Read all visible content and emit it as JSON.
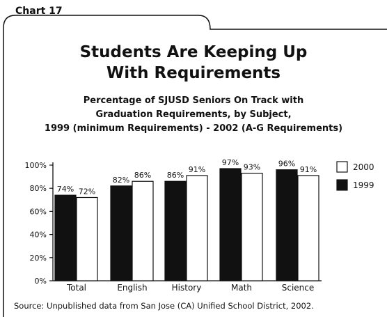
{
  "tab_label": "Chart 17",
  "title_lines": [
    "Students Are Keeping Up",
    "With Requirements"
  ],
  "subtitle_lines": [
    "Percentage of SJUSD Seniors On Track with",
    "Graduation Requirements, by Subject,",
    "1999 (minimum Requirements) - 2002 (A-G Requirements)"
  ],
  "source": "Source: Unpublished data from San Jose (CA) Unified School District, 2002.",
  "colors": {
    "series_1999": "#111111",
    "series_2000": "#ffffff",
    "stroke": "#111111"
  },
  "chart_data": {
    "type": "bar",
    "title": "Students Are Keeping Up With Requirements",
    "subtitle": "Percentage of SJUSD Seniors On Track with Graduation Requirements, by Subject, 1999 (minimum Requirements) - 2002 (A-G Requirements)",
    "categories": [
      "Total",
      "English",
      "History",
      "Math",
      "Science"
    ],
    "series": [
      {
        "name": "1999",
        "values": [
          74,
          82,
          86,
          97,
          96
        ],
        "labels": [
          "74%",
          "82%",
          "86%",
          "97%",
          "96%"
        ],
        "color": "#111111"
      },
      {
        "name": "2000",
        "values": [
          72,
          86,
          91,
          93,
          91
        ],
        "labels": [
          "72%",
          "86%",
          "91%",
          "93%",
          "91%"
        ],
        "color": "#ffffff"
      }
    ],
    "y_ticks": [
      0,
      20,
      40,
      60,
      80,
      100
    ],
    "y_tick_labels": [
      "0%",
      "20%",
      "40%",
      "60%",
      "80%",
      "100%"
    ],
    "ylim": [
      0,
      100
    ],
    "grid": false,
    "legend_position": "right",
    "legend": [
      {
        "name": "2000",
        "color": "#ffffff"
      },
      {
        "name": "1999",
        "color": "#111111"
      }
    ]
  }
}
